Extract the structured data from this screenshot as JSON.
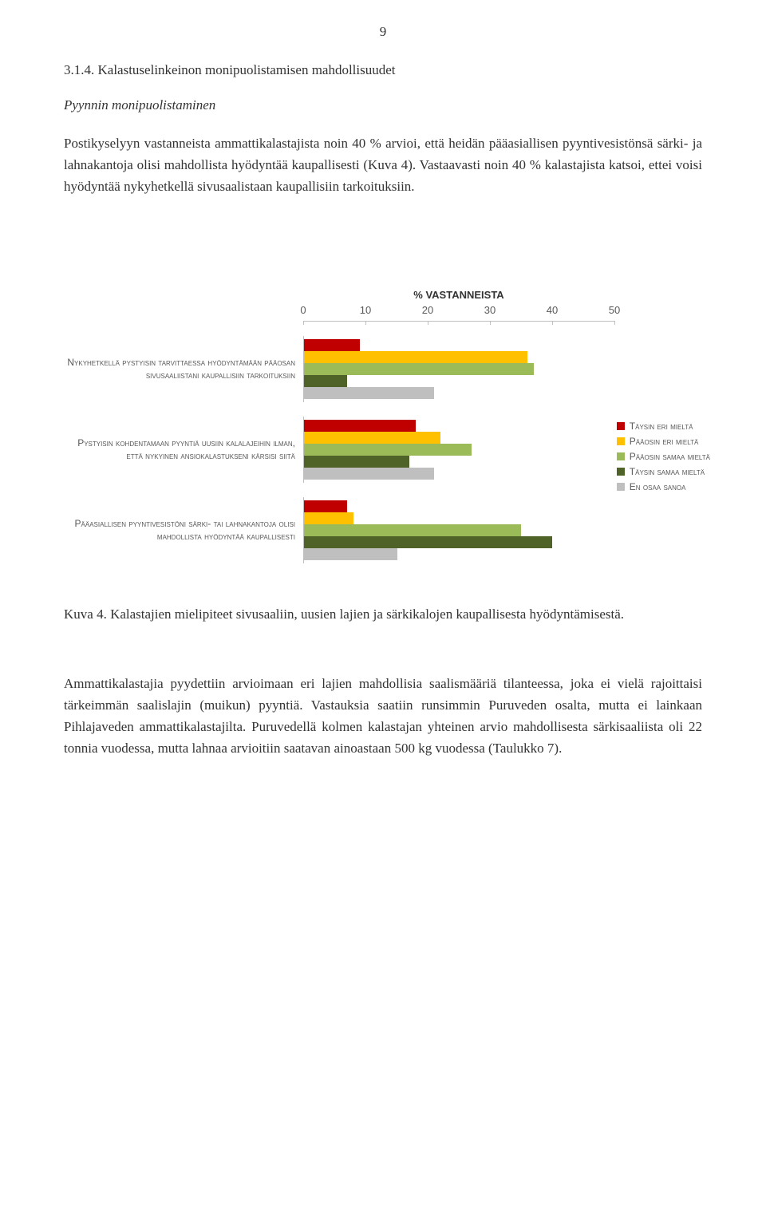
{
  "page_number": "9",
  "heading": "3.1.4. Kalastuselinkeinon monipuolistamisen mahdollisuudet",
  "subheading": "Pyynnin monipuolistaminen",
  "paragraph1": "Postikyselyyn vastanneista ammattikalastajista noin 40 % arvioi, että heidän pääasiallisen pyyntivesistönsä särki- ja lahnakantoja olisi mahdollista hyödyntää kaupallisesti (Kuva 4). Vastaavasti noin 40 % kalastajista katsoi, ettei voisi hyödyntää nykyhetkellä sivusaalistaan kaupallisiin tarkoituksiin.",
  "chart": {
    "type": "bar-horizontal-grouped",
    "title": "% VASTANNEISTA",
    "xlim": [
      0,
      50
    ],
    "ticks": [
      0,
      10,
      20,
      30,
      40,
      50
    ],
    "background_color": "#ffffff",
    "axis_color": "#bfbfbf",
    "label_fontsize": 12,
    "bar_colors": [
      "#c00000",
      "#ffc000",
      "#9bbb59",
      "#4f6228",
      "#bfbfbf"
    ],
    "legend_labels": [
      "Täysin eri mieltä",
      "Pääosin eri mieltä",
      "Pääosin samaa mieltä",
      "Täysin samaa mieltä",
      "En osaa sanoa"
    ],
    "categories": [
      {
        "label": "Nykyhetkellä pystyisin tarvittaessa hyödyntämään pääosan sivusaaliistani kaupallisiin tarkoituksiin",
        "values": [
          9,
          36,
          37,
          7,
          21
        ]
      },
      {
        "label": "Pystyisin kohdentamaan pyyntiä uusiin kalalajeihin ilman, että nykyinen ansiokalastukseni kärsisi siitä",
        "values": [
          18,
          22,
          27,
          17,
          21
        ]
      },
      {
        "label": "Pääasiallisen pyyntivesistöni särki- tai lahnakantoja olisi mahdollista hyödyntää kaupallisesti",
        "values": [
          7,
          8,
          35,
          40,
          15
        ]
      }
    ]
  },
  "caption": "Kuva 4. Kalastajien mielipiteet sivusaaliin, uusien lajien ja särkikalojen kaupallisesta hyödyntämisestä.",
  "paragraph2": "Ammattikalastajia pyydettiin arvioimaan eri lajien mahdollisia saalismääriä tilanteessa, joka ei vielä rajoittaisi tärkeimmän saalislajin (muikun) pyyntiä. Vastauksia saatiin runsimmin Puruveden osalta, mutta ei lainkaan Pihlajaveden ammattikalastajilta. Puruvedellä kolmen kalastajan yhteinen arvio mahdollisesta särkisaaliista oli 22 tonnia vuodessa, mutta lahnaa arvioitiin saatavan ainoastaan 500 kg vuodessa (Taulukko 7)."
}
